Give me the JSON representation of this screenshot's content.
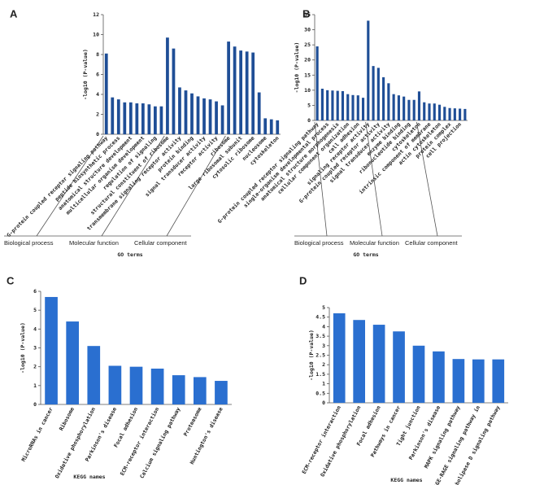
{
  "chart_data": [
    {
      "type": "bar",
      "label": "A",
      "ylabel": "-log10 (P-value)",
      "xlabel": "GO terms",
      "color": "#1f4e96",
      "ylim": [
        0,
        12
      ],
      "yticks": [
        0,
        2,
        4,
        6,
        8,
        10,
        12
      ],
      "groups": [
        {
          "name": "Biological process",
          "categories": [
            "G-protein coupled receptor signaling pathway",
            null,
            "peptide biosynthetic process",
            null,
            "anatomical structure development",
            null,
            "multicellular organism development",
            null,
            "regulation of signaling",
            null
          ],
          "values": [
            8.1,
            3.7,
            3.5,
            3.2,
            3.2,
            3.1,
            3.1,
            3.0,
            2.8,
            2.8
          ]
        },
        {
          "name": "Molecular function",
          "categories": [
            "structural constituent of ribosome",
            null,
            "transmembrane signaling receptor activity",
            null,
            "protein binding",
            null,
            "signal transducer activity",
            null,
            "receptor activity",
            null
          ],
          "values": [
            9.7,
            8.6,
            4.7,
            4.4,
            4.1,
            3.8,
            3.6,
            3.5,
            3.3,
            2.9
          ]
        },
        {
          "name": "Cellular component",
          "categories": [
            "ribosome",
            null,
            "large ribosomal subunit",
            null,
            "cytosolic ribosome",
            null,
            "nucleosome",
            null,
            "cytoskeleton"
          ],
          "values": [
            9.3,
            8.8,
            8.4,
            8.3,
            8.2,
            4.2,
            1.6,
            1.5,
            1.4
          ]
        }
      ]
    },
    {
      "type": "bar",
      "label": "B",
      "ylabel": "-log10 (P-value)",
      "xlabel": "GO terms",
      "color": "#1f4e96",
      "ylim": [
        0,
        35
      ],
      "yticks": [
        0,
        5,
        10,
        15,
        20,
        25,
        30,
        35
      ],
      "groups": [
        {
          "name": "Biological process",
          "categories": [
            "G-protein coupled receptor signaling pathway",
            null,
            "single-organism developmental process",
            null,
            "anatomical structure morphogenesis",
            null,
            "cellular component organization",
            null,
            "cell adhesion",
            null
          ],
          "values": [
            24.5,
            10.5,
            10,
            9.9,
            9.8,
            9.7,
            8.7,
            8.4,
            8.3,
            7.5
          ]
        },
        {
          "name": "Molecular function",
          "categories": [
            "signaling receptor activity",
            null,
            "G-protein coupled receptor activity",
            null,
            "signal transducer activity",
            null,
            "enzyme binding",
            null,
            "ribonucleotide binding",
            null
          ],
          "values": [
            33,
            18,
            17.4,
            14.3,
            12.3,
            8.7,
            8.3,
            7.9,
            6.8,
            6.8
          ]
        },
        {
          "name": "Cellular component",
          "categories": [
            "cytoskeleton",
            null,
            "intrinsic component of membrane",
            null,
            "actin cytoskeleton",
            null,
            "protein complex",
            null,
            "cell projection",
            null
          ],
          "values": [
            9.6,
            6,
            5.6,
            5.6,
            5.2,
            4.5,
            4.1,
            4,
            3.9,
            3.8
          ]
        }
      ]
    },
    {
      "type": "bar",
      "label": "C",
      "ylabel": "-log10 (P-value)",
      "xlabel": "KEGG names",
      "color": "#2a6fd0",
      "ylim": [
        0,
        6
      ],
      "yticks": [
        0,
        1,
        2,
        3,
        4,
        5,
        6
      ],
      "categories": [
        "MicroRNAs in cancer",
        "Ribosome",
        "Oxidative phosphorylation",
        "Parkinson's disease",
        "Focal adhesion",
        "ECM-receptor interaction",
        "Calcium signaling pathway",
        "Proteasome",
        "Huntington's disease"
      ],
      "values": [
        5.7,
        4.4,
        3.1,
        2.05,
        2.0,
        1.9,
        1.55,
        1.45,
        1.25
      ]
    },
    {
      "type": "bar",
      "label": "D",
      "ylabel": "-log10 (P-value)",
      "xlabel": "KEGG names",
      "color": "#2a6fd0",
      "ylim": [
        0,
        5
      ],
      "yticks": [
        0,
        0.5,
        1,
        1.5,
        2,
        2.5,
        3,
        3.5,
        4,
        4.5,
        5
      ],
      "categories": [
        "ECM-receptor interaction",
        "Oxidative phosphorylation",
        "Focal adhesion",
        "Pathways in cancer",
        "Tight junction",
        "Parkinson's disease",
        "MAPK signaling pathway",
        "AGE-RAGE signaling pathway in",
        "Phospholipase D signaling pathway"
      ],
      "values": [
        4.7,
        4.35,
        4.1,
        3.75,
        3.0,
        2.7,
        2.3,
        2.28,
        2.28
      ]
    }
  ]
}
